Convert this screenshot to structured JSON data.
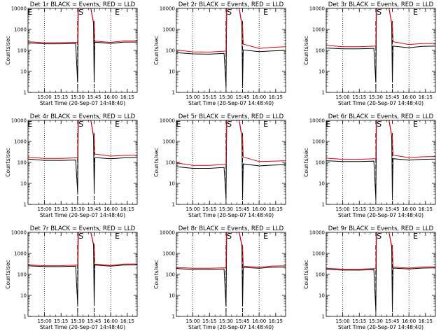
{
  "chart_data": [
    {
      "type": "line",
      "title": "Det 1r BLACK = Events, RED = LLD",
      "xlabel": "Start Time (20-Sep-07 14:48:40)",
      "ylabel": "Counts/sec",
      "yscale": "log",
      "ylim": [
        1,
        10000
      ],
      "xlim": [
        14.75,
        16.4
      ],
      "xticklabels": [
        "15:00",
        "15:15",
        "15:30",
        "15:45",
        "16:00",
        "16:15"
      ],
      "xticks": [
        15.0,
        15.25,
        15.5,
        15.75,
        16.0,
        16.25
      ],
      "yticklabels": [
        "1",
        "10",
        "100",
        "1000",
        "10000"
      ],
      "markers": [
        {
          "label": "E",
          "x": 14.78
        },
        {
          "label": "S",
          "x": 15.55
        },
        {
          "label": "E",
          "x": 16.1
        }
      ],
      "dotted_lines": [
        15.0,
        15.5,
        16.0
      ],
      "dashed_lines": [
        15.5,
        15.75
      ],
      "series": [
        {
          "color": "#000000",
          "x": [
            14.75,
            15.0,
            15.25,
            15.47,
            15.5,
            15.51,
            15.55,
            15.7,
            15.74,
            15.75,
            15.76,
            16.0,
            16.2,
            16.4
          ],
          "y": [
            230,
            205,
            205,
            215,
            3,
            10000,
            10000,
            10000,
            2000,
            3,
            245,
            215,
            250,
            250
          ]
        },
        {
          "color": "#e00000",
          "x": [
            14.75,
            15.0,
            15.25,
            15.47,
            15.5,
            15.51,
            15.55,
            15.7,
            15.74,
            15.75,
            15.76,
            16.0,
            16.2,
            16.4
          ],
          "y": [
            260,
            230,
            235,
            240,
            240,
            10000,
            10000,
            10000,
            2200,
            2200,
            275,
            240,
            285,
            285
          ]
        }
      ]
    },
    {
      "type": "line",
      "title": "Det 2r BLACK = Events, RED = LLD",
      "xlabel": "Start Time (20-Sep-07 14:48:40)",
      "ylabel": "Counts/sec",
      "yscale": "log",
      "ylim": [
        1,
        10000
      ],
      "xlim": [
        14.75,
        16.4
      ],
      "xticklabels": [
        "15:00",
        "15:15",
        "15:30",
        "15:45",
        "16:00",
        "16:15"
      ],
      "xticks": [
        15.0,
        15.25,
        15.5,
        15.75,
        16.0,
        16.25
      ],
      "yticklabels": [
        "1",
        "10",
        "100",
        "1000",
        "10000"
      ],
      "markers": [
        {
          "label": "S",
          "x": 15.55
        },
        {
          "label": "E",
          "x": 16.1
        }
      ],
      "dotted_lines": [
        15.0,
        15.5,
        16.0
      ],
      "dashed_lines": [
        15.5,
        15.75
      ],
      "series": [
        {
          "color": "#000000",
          "x": [
            14.75,
            15.0,
            15.25,
            15.47,
            15.5,
            15.51,
            15.55,
            15.7,
            15.74,
            15.75,
            15.76,
            16.0,
            16.2,
            16.4
          ],
          "y": [
            78,
            68,
            66,
            72,
            2,
            10000,
            10000,
            10000,
            1500,
            2,
            105,
            88,
            95,
            100
          ]
        },
        {
          "color": "#e00000",
          "x": [
            14.75,
            15.0,
            15.25,
            15.47,
            15.5,
            15.51,
            15.55,
            15.7,
            15.74,
            15.75,
            15.76,
            16.0,
            16.2,
            16.4
          ],
          "y": [
            105,
            85,
            83,
            92,
            92,
            10000,
            10000,
            10000,
            1700,
            1700,
            200,
            125,
            140,
            150
          ]
        }
      ]
    },
    {
      "type": "line",
      "title": "Det 3r BLACK = Events, RED = LLD",
      "xlabel": "Start Time (20-Sep-07 14:48:40)",
      "ylabel": "Counts/sec",
      "yscale": "log",
      "ylim": [
        1,
        10000
      ],
      "xlim": [
        14.75,
        16.4
      ],
      "xticklabels": [
        "15:00",
        "15:15",
        "15:30",
        "15:45",
        "16:00",
        "16:15"
      ],
      "xticks": [
        15.0,
        15.25,
        15.5,
        15.75,
        16.0,
        16.25
      ],
      "yticklabels": [
        "1",
        "10",
        "100",
        "1000",
        "10000"
      ],
      "markers": [
        {
          "label": "S",
          "x": 15.55
        },
        {
          "label": "E",
          "x": 16.1
        }
      ],
      "dotted_lines": [
        15.0,
        15.5,
        16.0
      ],
      "dashed_lines": [
        15.5,
        15.75
      ],
      "series": [
        {
          "color": "#000000",
          "x": [
            14.75,
            15.0,
            15.25,
            15.47,
            15.5,
            15.51,
            15.55,
            15.7,
            15.74,
            15.75,
            15.76,
            16.0,
            16.2,
            16.4
          ],
          "y": [
            130,
            118,
            118,
            125,
            3,
            10000,
            10000,
            10000,
            1800,
            3,
            160,
            135,
            155,
            160
          ]
        },
        {
          "color": "#e00000",
          "x": [
            14.75,
            15.0,
            15.25,
            15.47,
            15.5,
            15.51,
            15.55,
            15.7,
            15.74,
            15.75,
            15.76,
            16.0,
            16.2,
            16.4
          ],
          "y": [
            175,
            150,
            150,
            160,
            160,
            10000,
            10000,
            10000,
            2000,
            2000,
            260,
            190,
            210,
            215
          ]
        }
      ]
    },
    {
      "type": "line",
      "title": "Det 4r BLACK = Events, RED = LLD",
      "xlabel": "Start Time (20-Sep-07 14:48:40)",
      "ylabel": "Counts/sec",
      "yscale": "log",
      "ylim": [
        1,
        10000
      ],
      "xlim": [
        14.75,
        16.4
      ],
      "xticklabels": [
        "15:00",
        "15:15",
        "15:30",
        "15:45",
        "16:00",
        "16:15"
      ],
      "xticks": [
        15.0,
        15.25,
        15.5,
        15.75,
        16.0,
        16.25
      ],
      "yticklabels": [
        "1",
        "10",
        "100",
        "1000",
        "10000"
      ],
      "markers": [
        {
          "label": "E",
          "x": 14.78
        },
        {
          "label": "S",
          "x": 15.55
        },
        {
          "label": "E",
          "x": 16.1
        }
      ],
      "dotted_lines": [
        15.0,
        15.5,
        16.0
      ],
      "dashed_lines": [
        15.5,
        15.75
      ],
      "series": [
        {
          "color": "#000000",
          "x": [
            14.75,
            15.0,
            15.25,
            15.47,
            15.5,
            15.51,
            15.55,
            15.7,
            15.74,
            15.75,
            15.76,
            16.0,
            16.2,
            16.4
          ],
          "y": [
            145,
            125,
            125,
            130,
            4,
            10000,
            10000,
            10000,
            1700,
            4,
            170,
            150,
            165,
            170
          ]
        },
        {
          "color": "#e00000",
          "x": [
            14.75,
            15.0,
            15.25,
            15.47,
            15.5,
            15.51,
            15.55,
            15.7,
            15.74,
            15.75,
            15.76,
            16.0,
            16.2,
            16.4
          ],
          "y": [
            175,
            155,
            155,
            165,
            165,
            10000,
            10000,
            10000,
            1900,
            1900,
            250,
            200,
            215,
            220
          ]
        }
      ]
    },
    {
      "type": "line",
      "title": "Det 5r BLACK = Events, RED = LLD",
      "xlabel": "Start Time (20-Sep-07 14:48:40)",
      "ylabel": "Counts/sec",
      "yscale": "log",
      "ylim": [
        1,
        10000
      ],
      "xlim": [
        14.75,
        16.4
      ],
      "xticklabels": [
        "15:00",
        "15:15",
        "15:30",
        "15:45",
        "16:00",
        "16:15"
      ],
      "xticks": [
        15.0,
        15.25,
        15.5,
        15.75,
        16.0,
        16.25
      ],
      "yticklabels": [
        "1",
        "10",
        "100",
        "1000",
        "10000"
      ],
      "markers": [
        {
          "label": "E",
          "x": 14.78
        },
        {
          "label": "S",
          "x": 15.55
        },
        {
          "label": "E",
          "x": 16.1
        }
      ],
      "dotted_lines": [
        15.0,
        15.5,
        16.0
      ],
      "dashed_lines": [
        15.5,
        15.75
      ],
      "series": [
        {
          "color": "#000000",
          "x": [
            14.75,
            15.0,
            15.25,
            15.47,
            15.5,
            15.51,
            15.55,
            15.7,
            15.74,
            15.75,
            15.76,
            16.0,
            16.2,
            16.4
          ],
          "y": [
            62,
            52,
            52,
            58,
            2,
            10000,
            10000,
            10000,
            1500,
            2,
            85,
            68,
            74,
            78
          ]
        },
        {
          "color": "#e00000",
          "x": [
            14.75,
            15.0,
            15.25,
            15.47,
            15.5,
            15.51,
            15.55,
            15.7,
            15.74,
            15.75,
            15.76,
            16.0,
            16.2,
            16.4
          ],
          "y": [
            95,
            72,
            72,
            80,
            80,
            10000,
            10000,
            10000,
            1700,
            1700,
            180,
            110,
            115,
            120
          ]
        }
      ]
    },
    {
      "type": "line",
      "title": "Det 6r BLACK = Events, RED = LLD",
      "xlabel": "Start Time (20-Sep-07 14:48:40)",
      "ylabel": "Counts/sec",
      "yscale": "log",
      "ylim": [
        1,
        10000
      ],
      "xlim": [
        14.75,
        16.4
      ],
      "xticklabels": [
        "15:00",
        "15:15",
        "15:30",
        "15:45",
        "16:00",
        "16:15"
      ],
      "xticks": [
        15.0,
        15.25,
        15.5,
        15.75,
        16.0,
        16.25
      ],
      "yticklabels": [
        "1",
        "10",
        "100",
        "1000",
        "10000"
      ],
      "markers": [
        {
          "label": "E",
          "x": 14.78
        },
        {
          "label": "S",
          "x": 15.55
        },
        {
          "label": "E",
          "x": 16.1
        }
      ],
      "dotted_lines": [
        15.0,
        15.5,
        16.0
      ],
      "dashed_lines": [
        15.5,
        15.75
      ],
      "series": [
        {
          "color": "#000000",
          "x": [
            14.75,
            15.0,
            15.25,
            15.47,
            15.5,
            15.51,
            15.55,
            15.7,
            15.74,
            15.75,
            15.76,
            16.0,
            16.2,
            16.4
          ],
          "y": [
            120,
            110,
            110,
            115,
            2,
            10000,
            10000,
            10000,
            1700,
            2,
            150,
            130,
            140,
            145
          ]
        },
        {
          "color": "#e00000",
          "x": [
            14.75,
            15.0,
            15.25,
            15.47,
            15.5,
            15.51,
            15.55,
            15.7,
            15.74,
            15.75,
            15.76,
            16.0,
            16.2,
            16.4
          ],
          "y": [
            160,
            140,
            140,
            150,
            150,
            10000,
            10000,
            10000,
            1900,
            1900,
            220,
            170,
            185,
            190
          ]
        }
      ]
    },
    {
      "type": "line",
      "title": "Det 7r BLACK = Events, RED = LLD",
      "xlabel": "Start Time (20-Sep-07 14:48:40)",
      "ylabel": "Counts/sec",
      "yscale": "log",
      "ylim": [
        1,
        10000
      ],
      "xlim": [
        14.75,
        16.4
      ],
      "xticklabels": [
        "15:00",
        "15:15",
        "15:30",
        "15:45",
        "16:00",
        "16:15"
      ],
      "xticks": [
        15.0,
        15.25,
        15.5,
        15.75,
        16.0,
        16.25
      ],
      "yticklabels": [
        "1",
        "10",
        "100",
        "1000",
        "10000"
      ],
      "markers": [
        {
          "label": "S",
          "x": 15.55
        },
        {
          "label": "E",
          "x": 16.1
        }
      ],
      "dotted_lines": [
        15.0,
        15.5,
        16.0
      ],
      "dashed_lines": [
        15.5,
        15.75
      ],
      "series": [
        {
          "color": "#000000",
          "x": [
            14.75,
            15.0,
            15.25,
            15.47,
            15.5,
            15.51,
            15.55,
            15.7,
            15.74,
            15.75,
            15.76,
            16.0,
            16.2,
            16.4
          ],
          "y": [
            255,
            235,
            235,
            245,
            4,
            10000,
            10000,
            10000,
            2500,
            4,
            280,
            245,
            280,
            285
          ]
        },
        {
          "color": "#e00000",
          "x": [
            14.75,
            15.0,
            15.25,
            15.47,
            15.5,
            15.51,
            15.55,
            15.7,
            15.74,
            15.75,
            15.76,
            16.0,
            16.2,
            16.4
          ],
          "y": [
            285,
            260,
            262,
            275,
            275,
            10000,
            10000,
            10000,
            2800,
            2800,
            310,
            270,
            310,
            315
          ]
        }
      ]
    },
    {
      "type": "line",
      "title": "Det 8r BLACK = Events, RED = LLD",
      "xlabel": "Start Time (20-Sep-07 14:48:40)",
      "ylabel": "Counts/sec",
      "yscale": "log",
      "ylim": [
        1,
        10000
      ],
      "xlim": [
        14.75,
        16.4
      ],
      "xticklabels": [
        "15:00",
        "15:15",
        "15:30",
        "15:45",
        "16:00",
        "16:15"
      ],
      "xticks": [
        15.0,
        15.25,
        15.5,
        15.75,
        16.0,
        16.25
      ],
      "yticklabels": [
        "1",
        "10",
        "100",
        "1000",
        "10000"
      ],
      "markers": [
        {
          "label": "S",
          "x": 15.55
        },
        {
          "label": "E",
          "x": 16.1
        }
      ],
      "dotted_lines": [
        15.0,
        15.5,
        16.0
      ],
      "dashed_lines": [
        15.5,
        15.75
      ],
      "series": [
        {
          "color": "#000000",
          "x": [
            14.75,
            15.0,
            15.25,
            15.47,
            15.5,
            15.51,
            15.55,
            15.7,
            15.74,
            15.75,
            15.76,
            16.0,
            16.2,
            16.4
          ],
          "y": [
            190,
            172,
            172,
            180,
            3,
            10000,
            10000,
            10000,
            2200,
            3,
            215,
            195,
            220,
            225
          ]
        },
        {
          "color": "#e00000",
          "x": [
            14.75,
            15.0,
            15.25,
            15.47,
            15.5,
            15.51,
            15.55,
            15.7,
            15.74,
            15.75,
            15.76,
            16.0,
            16.2,
            16.4
          ],
          "y": [
            215,
            195,
            195,
            205,
            205,
            10000,
            10000,
            10000,
            2500,
            2500,
            245,
            220,
            250,
            255
          ]
        }
      ]
    },
    {
      "type": "line",
      "title": "Det 9r BLACK = Events, RED = LLD",
      "xlabel": "Start Time (20-Sep-07 14:48:40)",
      "ylabel": "Counts/sec",
      "yscale": "log",
      "ylim": [
        1,
        10000
      ],
      "xlim": [
        14.75,
        16.4
      ],
      "xticklabels": [
        "15:00",
        "15:15",
        "15:30",
        "15:45",
        "16:00",
        "16:15"
      ],
      "xticks": [
        15.0,
        15.25,
        15.5,
        15.75,
        16.0,
        16.25
      ],
      "yticklabels": [
        "1",
        "10",
        "100",
        "1000",
        "10000"
      ],
      "markers": [
        {
          "label": "S",
          "x": 15.55
        },
        {
          "label": "E",
          "x": 16.1
        }
      ],
      "dotted_lines": [
        15.0,
        15.5,
        16.0
      ],
      "dashed_lines": [
        15.5,
        15.75
      ],
      "series": [
        {
          "color": "#000000",
          "x": [
            14.75,
            15.0,
            15.25,
            15.47,
            15.5,
            15.51,
            15.55,
            15.7,
            15.74,
            15.75,
            15.76,
            16.0,
            16.2,
            16.4
          ],
          "y": [
            175,
            160,
            160,
            168,
            2,
            10000,
            10000,
            10000,
            2000,
            2,
            200,
            180,
            200,
            205
          ]
        },
        {
          "color": "#e00000",
          "x": [
            14.75,
            15.0,
            15.25,
            15.47,
            15.5,
            15.51,
            15.55,
            15.7,
            15.74,
            15.75,
            15.76,
            16.0,
            16.2,
            16.4
          ],
          "y": [
            195,
            178,
            178,
            188,
            188,
            10000,
            10000,
            10000,
            2300,
            2300,
            225,
            200,
            225,
            230
          ]
        }
      ]
    }
  ]
}
